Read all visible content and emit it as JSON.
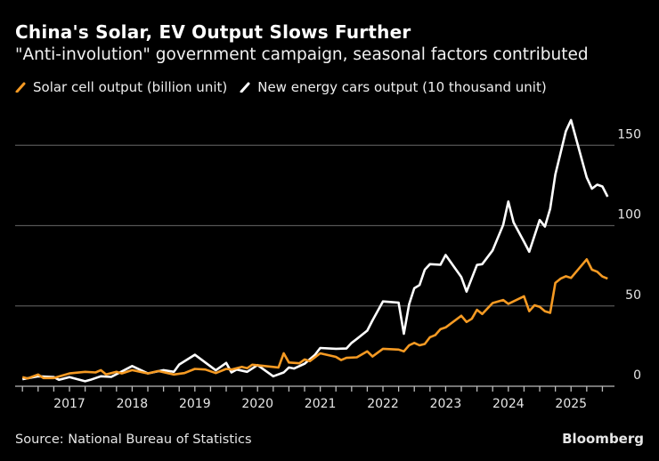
{
  "chart_data": {
    "type": "line",
    "title": "China's Solar, EV Output Slows Further",
    "subtitle": "\"Anti-involution\" government campaign, seasonal factors contributed",
    "xlabel": "",
    "ylabel": "",
    "ylim": [
      0,
      165
    ],
    "xlim": [
      "2016-03",
      "2025-09"
    ],
    "yticks": [
      0,
      50,
      100,
      150
    ],
    "xticks": [
      "2017",
      "2018",
      "2019",
      "2020",
      "2021",
      "2022",
      "2023",
      "2024",
      "2025"
    ],
    "grid": "horizontal",
    "legend_placement": "top-left",
    "series": [
      {
        "name": "Solar cell output (billion unit)",
        "color": "#f59a23",
        "points": [
          [
            "2016-04",
            5.7
          ],
          [
            "2016-05",
            4.9
          ],
          [
            "2016-07",
            7.3
          ],
          [
            "2016-08",
            5.1
          ],
          [
            "2016-10",
            5.1
          ],
          [
            "2017-01",
            8
          ],
          [
            "2017-04",
            9
          ],
          [
            "2017-06",
            8.6
          ],
          [
            "2017-07",
            10
          ],
          [
            "2017-08",
            7.3
          ],
          [
            "2017-10",
            9
          ],
          [
            "2017-11",
            8
          ],
          [
            "2018-01",
            10
          ],
          [
            "2018-04",
            8
          ],
          [
            "2018-06",
            9.5
          ],
          [
            "2018-09",
            7.3
          ],
          [
            "2018-11",
            8.2
          ],
          [
            "2019-01",
            10.8
          ],
          [
            "2019-03",
            10.4
          ],
          [
            "2019-05",
            8.2
          ],
          [
            "2019-07",
            10.8
          ],
          [
            "2019-08",
            10.4
          ],
          [
            "2019-10",
            12.1
          ],
          [
            "2019-11",
            11.2
          ],
          [
            "2019-12",
            13.4
          ],
          [
            "2020-05",
            11.7
          ],
          [
            "2020-06",
            20.5
          ],
          [
            "2020-07",
            14.8
          ],
          [
            "2020-09",
            14.3
          ],
          [
            "2020-10",
            16.7
          ],
          [
            "2020-11",
            15.6
          ],
          [
            "2021-01",
            20.5
          ],
          [
            "2021-04",
            18.3
          ],
          [
            "2021-05",
            16.3
          ],
          [
            "2021-06",
            17.7
          ],
          [
            "2021-08",
            18
          ],
          [
            "2021-10",
            21.7
          ],
          [
            "2021-11",
            18.5
          ],
          [
            "2022-01",
            23.3
          ],
          [
            "2022-04",
            22.8
          ],
          [
            "2022-05",
            21.7
          ],
          [
            "2022-06",
            25.5
          ],
          [
            "2022-07",
            27
          ],
          [
            "2022-08",
            25.5
          ],
          [
            "2022-09",
            26.3
          ],
          [
            "2022-10",
            30.5
          ],
          [
            "2022-11",
            31.8
          ],
          [
            "2022-12",
            35.5
          ],
          [
            "2023-01",
            36.6
          ],
          [
            "2023-04",
            43.9
          ],
          [
            "2023-05",
            40
          ],
          [
            "2023-06",
            42
          ],
          [
            "2023-07",
            47.6
          ],
          [
            "2023-08",
            45
          ],
          [
            "2023-10",
            51.8
          ],
          [
            "2023-12",
            53.7
          ],
          [
            "2024-01",
            51.3
          ],
          [
            "2024-04",
            56
          ],
          [
            "2024-05",
            46.7
          ],
          [
            "2024-06",
            50.4
          ],
          [
            "2024-07",
            49.4
          ],
          [
            "2024-08",
            46.7
          ],
          [
            "2024-09",
            45.7
          ],
          [
            "2024-10",
            64.3
          ],
          [
            "2024-11",
            67
          ],
          [
            "2024-12",
            68.5
          ],
          [
            "2025-01",
            67.4
          ],
          [
            "2025-04",
            79
          ],
          [
            "2025-05",
            72.6
          ],
          [
            "2025-06",
            71.3
          ],
          [
            "2025-07",
            68.3
          ],
          [
            "2025-08",
            67
          ]
        ]
      },
      {
        "name": "New energy cars output (10 thousand unit)",
        "color": "#ffffff",
        "points": [
          [
            "2016-04",
            4.4
          ],
          [
            "2016-07",
            6.2
          ],
          [
            "2016-10",
            5.7
          ],
          [
            "2016-11",
            4
          ],
          [
            "2017-01",
            5.7
          ],
          [
            "2017-04",
            3.1
          ],
          [
            "2017-05",
            4
          ],
          [
            "2017-07",
            6.2
          ],
          [
            "2017-09",
            5.8
          ],
          [
            "2018-01",
            12.6
          ],
          [
            "2018-04",
            8
          ],
          [
            "2018-07",
            10
          ],
          [
            "2018-09",
            9
          ],
          [
            "2018-10",
            13.5
          ],
          [
            "2019-01",
            19.6
          ],
          [
            "2019-05",
            9.9
          ],
          [
            "2019-07",
            14.5
          ],
          [
            "2019-08",
            8.6
          ],
          [
            "2019-09",
            10.4
          ],
          [
            "2019-11",
            9
          ],
          [
            "2020-01",
            13.2
          ],
          [
            "2020-04",
            6.2
          ],
          [
            "2020-06",
            8.6
          ],
          [
            "2020-07",
            11.7
          ],
          [
            "2020-08",
            11
          ],
          [
            "2020-10",
            14
          ],
          [
            "2020-12",
            19.6
          ],
          [
            "2021-01",
            23.8
          ],
          [
            "2021-04",
            23.3
          ],
          [
            "2021-06",
            23.5
          ],
          [
            "2021-07",
            27
          ],
          [
            "2021-08",
            29.5
          ],
          [
            "2021-10",
            34.6
          ],
          [
            "2021-11",
            41
          ],
          [
            "2022-01",
            52.8
          ],
          [
            "2022-04",
            52
          ],
          [
            "2022-05",
            32.7
          ],
          [
            "2022-06",
            51
          ],
          [
            "2022-07",
            61
          ],
          [
            "2022-08",
            63
          ],
          [
            "2022-09",
            72.6
          ],
          [
            "2022-10",
            76
          ],
          [
            "2022-12",
            75.6
          ],
          [
            "2023-01",
            81.7
          ],
          [
            "2023-04",
            68
          ],
          [
            "2023-05",
            58.9
          ],
          [
            "2023-07",
            75.5
          ],
          [
            "2023-08",
            76
          ],
          [
            "2023-10",
            84.6
          ],
          [
            "2023-12",
            100.4
          ],
          [
            "2024-01",
            115
          ],
          [
            "2024-02",
            102
          ],
          [
            "2024-04",
            90
          ],
          [
            "2024-05",
            83.7
          ],
          [
            "2024-07",
            103.5
          ],
          [
            "2024-08",
            99.4
          ],
          [
            "2024-09",
            110.5
          ],
          [
            "2024-10",
            131.8
          ],
          [
            "2024-12",
            158.8
          ],
          [
            "2025-01",
            165.7
          ],
          [
            "2025-04",
            130
          ],
          [
            "2025-05",
            123
          ],
          [
            "2025-06",
            125.5
          ],
          [
            "2025-07",
            124.4
          ],
          [
            "2025-08",
            118
          ]
        ]
      }
    ]
  },
  "footer": {
    "source": "Source: National Bureau of Statistics",
    "brand": "Bloomberg"
  }
}
